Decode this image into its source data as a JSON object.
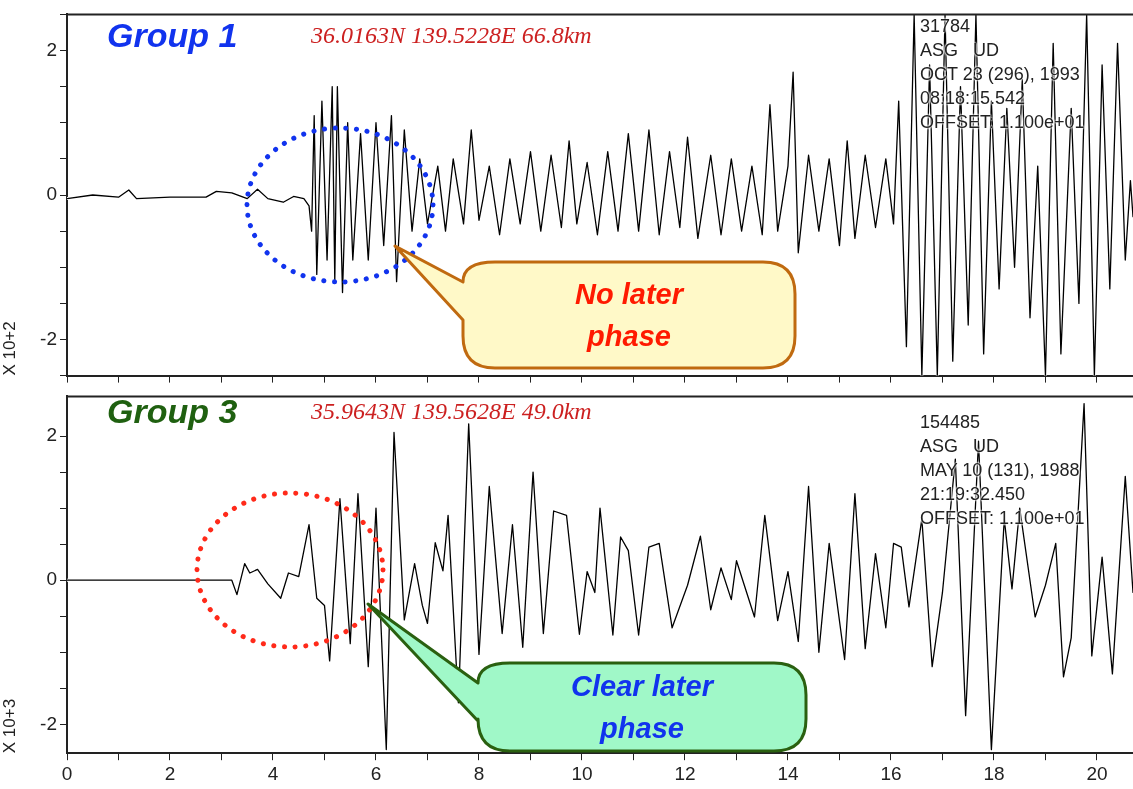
{
  "chart_data": [
    {
      "type": "line",
      "ylabel": "X 10+2",
      "xlim": [
        0,
        20.7
      ],
      "ylim": [
        -2.5,
        2.5
      ],
      "tick_labels": "y",
      "xticks": [
        {
          "value": 0,
          "label": null
        },
        {
          "value": 1,
          "label": null
        },
        {
          "value": 2,
          "label": null
        },
        {
          "value": 3,
          "label": null
        },
        {
          "value": 4,
          "label": null
        },
        {
          "value": 5,
          "label": null
        },
        {
          "value": 6,
          "label": null
        },
        {
          "value": 7,
          "label": null
        },
        {
          "value": 8,
          "label": null
        },
        {
          "value": 9,
          "label": null
        },
        {
          "value": 10,
          "label": null
        },
        {
          "value": 11,
          "label": null
        },
        {
          "value": 12,
          "label": null
        },
        {
          "value": 13,
          "label": null
        },
        {
          "value": 14,
          "label": null
        },
        {
          "value": 15,
          "label": null
        },
        {
          "value": 16,
          "label": null
        },
        {
          "value": 17,
          "label": null
        },
        {
          "value": 18,
          "label": null
        },
        {
          "value": 19,
          "label": null
        },
        {
          "value": 20,
          "label": null
        }
      ],
      "yticks": [
        {
          "value": -2.5,
          "label": null
        },
        -2,
        {
          "value": -1.5,
          "label": null
        },
        {
          "value": -1,
          "label": null
        },
        {
          "value": -0.5,
          "label": null
        },
        0,
        {
          "value": 0.5,
          "label": null
        },
        {
          "value": 1,
          "label": null
        },
        {
          "value": 1.5,
          "label": null
        },
        2,
        {
          "value": 2.5,
          "label": null
        }
      ],
      "annotations": [
        "Group 1",
        "36.0163N 139.5228E 66.8km",
        "31784",
        "ASG   UD",
        "OCT 23 (296), 1993",
        "08:18:15.542",
        "OFFSET: 1.100e+01",
        "No later phase"
      ],
      "x": [
        0,
        0.5,
        1.0,
        1.2,
        1.35,
        2.0,
        2.7,
        2.9,
        3.2,
        3.5,
        3.7,
        3.9,
        4.2,
        4.4,
        4.6,
        4.7,
        4.75,
        4.8,
        4.85,
        4.95,
        5.05,
        5.15,
        5.2,
        5.25,
        5.35,
        5.45,
        5.55,
        5.7,
        5.85,
        6.0,
        6.15,
        6.3,
        6.4,
        6.55,
        6.7,
        6.85,
        7.0,
        7.2,
        7.35,
        7.5,
        7.7,
        7.85,
        8.0,
        8.2,
        8.4,
        8.6,
        8.8,
        9.0,
        9.2,
        9.4,
        9.6,
        9.75,
        9.9,
        10.1,
        10.3,
        10.5,
        10.7,
        10.9,
        11.1,
        11.3,
        11.5,
        11.7,
        11.9,
        12.05,
        12.25,
        12.5,
        12.7,
        12.9,
        13.1,
        13.3,
        13.5,
        13.65,
        13.8,
        14.0,
        14.1,
        14.2,
        14.4,
        14.6,
        14.8,
        15.0,
        15.15,
        15.3,
        15.5,
        15.7,
        15.9,
        16.05,
        16.15,
        16.3,
        16.45,
        16.6,
        16.75,
        16.9,
        17.05,
        17.2,
        17.35,
        17.5,
        17.65,
        17.8,
        17.95,
        18.1,
        18.25,
        18.4,
        18.55,
        18.7,
        18.85,
        19.0,
        19.15,
        19.3,
        19.5,
        19.65,
        19.8,
        19.95,
        20.1,
        20.25,
        20.4,
        20.55,
        20.65,
        20.7
      ],
      "series": [
        {
          "color": "#000000",
          "values": [
            -0.05,
            0,
            -0.03,
            0.07,
            -0.05,
            -0.03,
            -0.03,
            0.05,
            0.03,
            -0.05,
            0.08,
            -0.05,
            -0.1,
            -0.02,
            -0.05,
            -0.15,
            -0.5,
            1.1,
            -1.1,
            1.3,
            -0.9,
            1.5,
            -1.2,
            1.5,
            -1.35,
            1.0,
            -0.9,
            0.85,
            -0.9,
            1.0,
            -0.7,
            1.1,
            -1.2,
            0.9,
            -0.5,
            0.5,
            -0.4,
            0.4,
            -0.5,
            0.5,
            -0.4,
            0.9,
            -0.35,
            0.4,
            -0.55,
            0.5,
            -0.4,
            0.6,
            -0.5,
            0.55,
            -0.45,
            0.75,
            -0.4,
            0.45,
            -0.55,
            0.6,
            -0.5,
            0.85,
            -0.5,
            0.9,
            -0.55,
            0.6,
            -0.45,
            0.8,
            -0.6,
            0.55,
            -0.55,
            0.5,
            -0.5,
            0.4,
            -0.55,
            1.25,
            -0.5,
            0.4,
            1.7,
            -0.8,
            0.55,
            -0.5,
            0.5,
            -0.7,
            0.75,
            -0.6,
            0.55,
            -0.45,
            0.5,
            -0.4,
            1.3,
            -2.1,
            2.5,
            -2.5,
            1.8,
            -2.5,
            2.5,
            -2.3,
            1.5,
            -1.8,
            2.5,
            -2.2,
            1.3,
            -1.3,
            1.2,
            -1.0,
            1.6,
            -1.7,
            0.4,
            -2.5,
            2.1,
            -2.2,
            1.2,
            -1.5,
            2.5,
            -2.5,
            1.8,
            -1.3,
            2.1,
            -0.9,
            0.2,
            -0.3
          ]
        }
      ]
    },
    {
      "type": "line",
      "ylabel": "X 10+3",
      "xlim": [
        0,
        20.7
      ],
      "ylim": [
        -2.4,
        2.55
      ],
      "xticks": [
        0,
        {
          "value": 1,
          "label": null
        },
        2,
        {
          "value": 3,
          "label": null
        },
        4,
        {
          "value": 5,
          "label": null
        },
        6,
        {
          "value": 7,
          "label": null
        },
        8,
        {
          "value": 9,
          "label": null
        },
        10,
        {
          "value": 11,
          "label": null
        },
        12,
        {
          "value": 13,
          "label": null
        },
        14,
        {
          "value": 15,
          "label": null
        },
        16,
        {
          "value": 17,
          "label": null
        },
        18,
        {
          "value": 19,
          "label": null
        },
        20
      ],
      "yticks": [
        -2,
        {
          "value": -1.5,
          "label": null
        },
        {
          "value": -1,
          "label": null
        },
        {
          "value": -0.5,
          "label": null
        },
        0,
        {
          "value": 0.5,
          "label": null
        },
        {
          "value": 1,
          "label": null
        },
        {
          "value": 1.5,
          "label": null
        },
        2
      ],
      "annotations": [
        "Group 3",
        "35.9643N 139.5628E 49.0km",
        "154485",
        "ASG   UD",
        "MAY 10 (131), 1988",
        "21:19:32.450",
        "OFFSET: 1.100e+01",
        "Clear later phase"
      ],
      "x": [
        0,
        1,
        2,
        3,
        3.2,
        3.3,
        3.45,
        3.55,
        3.7,
        3.9,
        4.15,
        4.3,
        4.5,
        4.7,
        4.85,
        5.0,
        5.1,
        5.3,
        5.5,
        5.65,
        5.85,
        6.0,
        6.2,
        6.35,
        6.55,
        6.75,
        6.9,
        7.0,
        7.15,
        7.3,
        7.4,
        7.6,
        7.8,
        8.0,
        8.2,
        8.45,
        8.65,
        8.85,
        9.05,
        9.25,
        9.45,
        9.7,
        9.95,
        10.1,
        10.25,
        10.35,
        10.6,
        10.75,
        10.9,
        11.1,
        11.3,
        11.5,
        11.75,
        12.05,
        12.3,
        12.5,
        12.7,
        12.9,
        13.0,
        13.35,
        13.55,
        13.8,
        14.0,
        14.2,
        14.4,
        14.6,
        14.8,
        15.1,
        15.3,
        15.5,
        15.7,
        15.9,
        16.05,
        16.2,
        16.35,
        16.6,
        16.8,
        17.0,
        17.25,
        17.45,
        17.7,
        17.95,
        18.2,
        18.35,
        18.5,
        18.8,
        19.0,
        19.2,
        19.35,
        19.5,
        19.75,
        19.9,
        20.1,
        20.3,
        20.55,
        20.7
      ],
      "series": [
        {
          "color": "#000000",
          "values": [
            0,
            0,
            0,
            0,
            0,
            -0.2,
            0.23,
            0.1,
            0.15,
            -0.05,
            -0.25,
            0.1,
            0.05,
            0.77,
            -0.25,
            -0.35,
            -1.12,
            1.13,
            -0.88,
            1.2,
            -1.2,
            1.0,
            -2.35,
            2.05,
            -0.55,
            0.23,
            -0.35,
            -0.6,
            0.52,
            0.13,
            0.9,
            -1.7,
            2.17,
            -1.03,
            1.3,
            -0.74,
            0.77,
            -0.93,
            1.5,
            -0.74,
            0.96,
            0.9,
            -0.75,
            0.12,
            -0.17,
            1.0,
            -0.76,
            0.6,
            0.41,
            -0.76,
            0.46,
            0.51,
            -0.66,
            -0.07,
            0.61,
            -0.41,
            0.17,
            -0.27,
            0.27,
            -0.51,
            0.9,
            -0.56,
            0.12,
            -0.85,
            1.3,
            -1.0,
            0.51,
            -1.1,
            1.2,
            -0.95,
            0.37,
            -0.66,
            0.51,
            0.46,
            -0.37,
            0.85,
            -1.2,
            -0.17,
            1.68,
            -1.88,
            1.93,
            -2.35,
            0.85,
            -0.12,
            1.0,
            -0.51,
            -0.07,
            0.51,
            -1.34,
            -0.8,
            2.45,
            -1.05,
            0.32,
            -1.3,
            1.44,
            -0.17
          ]
        }
      ]
    }
  ]
}
